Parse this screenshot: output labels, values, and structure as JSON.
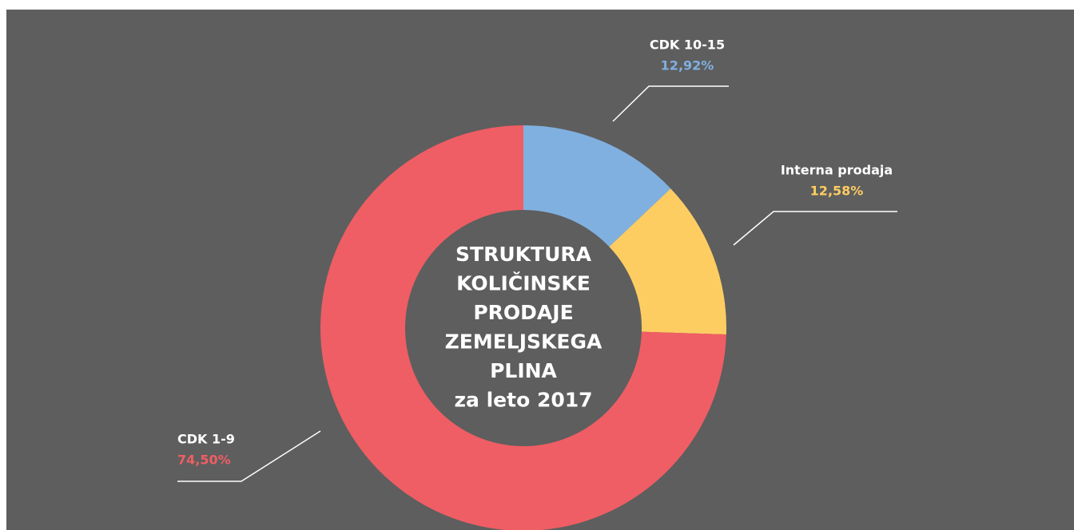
{
  "chart_data": {
    "type": "donut",
    "title_lines": [
      "STRUKTURA",
      "KOLIČINSKE",
      "PRODAJE",
      "ZEMELJSKEGA",
      "PLINA",
      "za leto 2017"
    ],
    "categories": [
      "CDK 10-15",
      "Interna prodaja",
      "CDK 1-9"
    ],
    "values": [
      12.92,
      12.58,
      74.5
    ],
    "value_labels": [
      "12,92%",
      "12,58%",
      "74,50%"
    ],
    "colors": [
      "#80b0e0",
      "#fdcd62",
      "#ef5e64"
    ]
  }
}
